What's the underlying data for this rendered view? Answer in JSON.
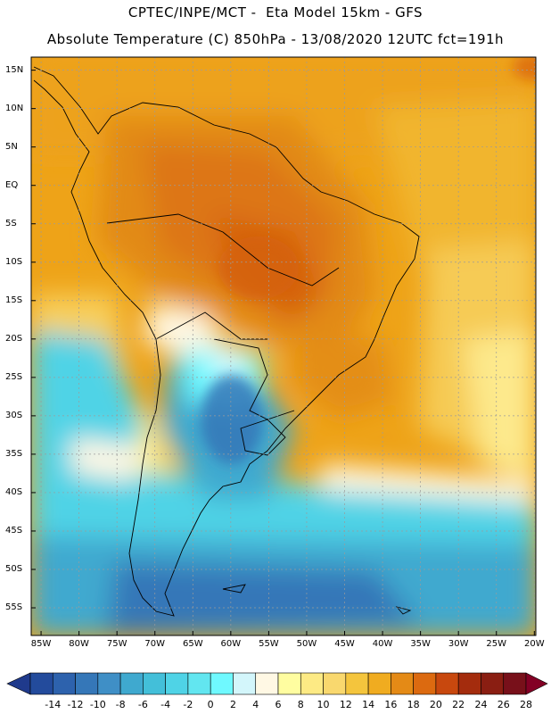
{
  "header": {
    "title_line1": "CPTEC/INPE/MCT -  Eta Model 15km - GFS",
    "title_line2": "Absolute Temperature (C) 850hPa - 13/08/2020 12UTC fct=191h"
  },
  "map": {
    "region": "South America",
    "lat_labels": [
      "15N",
      "10N",
      "5N",
      "EQ",
      "5S",
      "10S",
      "15S",
      "20S",
      "25S",
      "30S",
      "35S",
      "40S",
      "45S",
      "50S",
      "55S"
    ],
    "lat_values": [
      15,
      10,
      5,
      0,
      -5,
      -10,
      -15,
      -20,
      -25,
      -30,
      -35,
      -40,
      -45,
      -50,
      -55
    ],
    "lon_labels": [
      "85W",
      "80W",
      "75W",
      "70W",
      "65W",
      "60W",
      "55W",
      "50W",
      "45W",
      "40W",
      "35W",
      "30W",
      "25W",
      "20W"
    ],
    "lon_values": [
      -85,
      -80,
      -75,
      -70,
      -65,
      -60,
      -55,
      -50,
      -45,
      -40,
      -35,
      -30,
      -25,
      -20
    ]
  },
  "colorbar": {
    "labels": [
      "-14",
      "-12",
      "-10",
      "-8",
      "-6",
      "-4",
      "-2",
      "0",
      "2",
      "4",
      "6",
      "8",
      "10",
      "12",
      "14",
      "16",
      "18",
      "20",
      "22",
      "24",
      "26",
      "28"
    ],
    "colors": [
      "#1f3a8c",
      "#234b9c",
      "#2d62ad",
      "#3577b8",
      "#3f8fc6",
      "#3fa9cf",
      "#43bfd9",
      "#4fd3e6",
      "#62e6f0",
      "#6ff9ff",
      "#d3f6fb",
      "#fff8e4",
      "#fffda0",
      "#fdea84",
      "#f9d86e",
      "#f4c53d",
      "#f0ac20",
      "#e48a16",
      "#dc6a10",
      "#c8480e",
      "#a42c0d",
      "#8a1e12",
      "#78101a",
      "#830025"
    ]
  }
}
